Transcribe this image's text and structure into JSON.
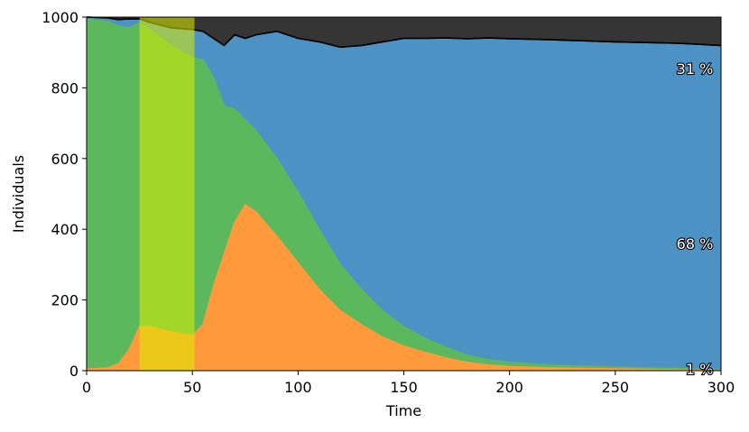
{
  "chart_data": {
    "type": "area",
    "title": "",
    "xlabel": "Time",
    "ylabel": "Individuals",
    "xlim": [
      0,
      300
    ],
    "ylim": [
      0,
      1000
    ],
    "xticks": [
      "0",
      "50",
      "100",
      "150",
      "200",
      "250",
      "300"
    ],
    "yticks": [
      "0",
      "200",
      "400",
      "600",
      "800",
      "1000"
    ],
    "grid": false,
    "legend": "none",
    "stacked": true,
    "x": [
      0,
      10,
      15,
      20,
      25,
      30,
      40,
      50,
      55,
      60,
      65,
      70,
      75,
      80,
      90,
      100,
      110,
      120,
      130,
      140,
      150,
      160,
      170,
      180,
      190,
      200,
      220,
      250,
      280,
      300
    ],
    "series": [
      {
        "key": "I",
        "color": "#ff9a3c",
        "values": [
          5,
          8,
          20,
          60,
          125,
          125,
          110,
          100,
          130,
          240,
          330,
          420,
          470,
          450,
          380,
          305,
          230,
          170,
          130,
          95,
          70,
          52,
          36,
          24,
          16,
          12,
          8,
          5,
          3,
          1
        ]
      },
      {
        "key": "S",
        "color": "#5cb85c",
        "values": [
          990,
          980,
          955,
          910,
          860,
          840,
          810,
          785,
          750,
          590,
          420,
          320,
          240,
          230,
          220,
          200,
          170,
          130,
          100,
          75,
          55,
          40,
          30,
          20,
          15,
          12,
          8,
          5,
          3,
          2
        ]
      },
      {
        "key": "R",
        "color": "#4c92c4",
        "values": [
          5,
          10,
          18,
          25,
          10,
          20,
          50,
          80,
          80,
          110,
          170,
          210,
          230,
          270,
          360,
          435,
          530,
          615,
          690,
          760,
          815,
          848,
          875,
          895,
          910,
          915,
          920,
          920,
          920,
          917
        ]
      },
      {
        "key": "D",
        "color": "#353535",
        "values": [
          0,
          2,
          7,
          5,
          5,
          15,
          30,
          35,
          40,
          60,
          80,
          50,
          60,
          50,
          40,
          60,
          70,
          85,
          80,
          70,
          60,
          60,
          59,
          61,
          59,
          61,
          64,
          70,
          74,
          80
        ]
      }
    ],
    "shaded_interval": {
      "x_from": 25,
      "x_to": 51,
      "color": "#ddee00",
      "opacity": 0.55
    },
    "annotations": [
      {
        "text": "31 %",
        "x": 298,
        "y": 855
      },
      {
        "text": "68 %",
        "x": 298,
        "y": 360
      },
      {
        "text": "1 %",
        "x": 298,
        "y": 5
      }
    ]
  }
}
